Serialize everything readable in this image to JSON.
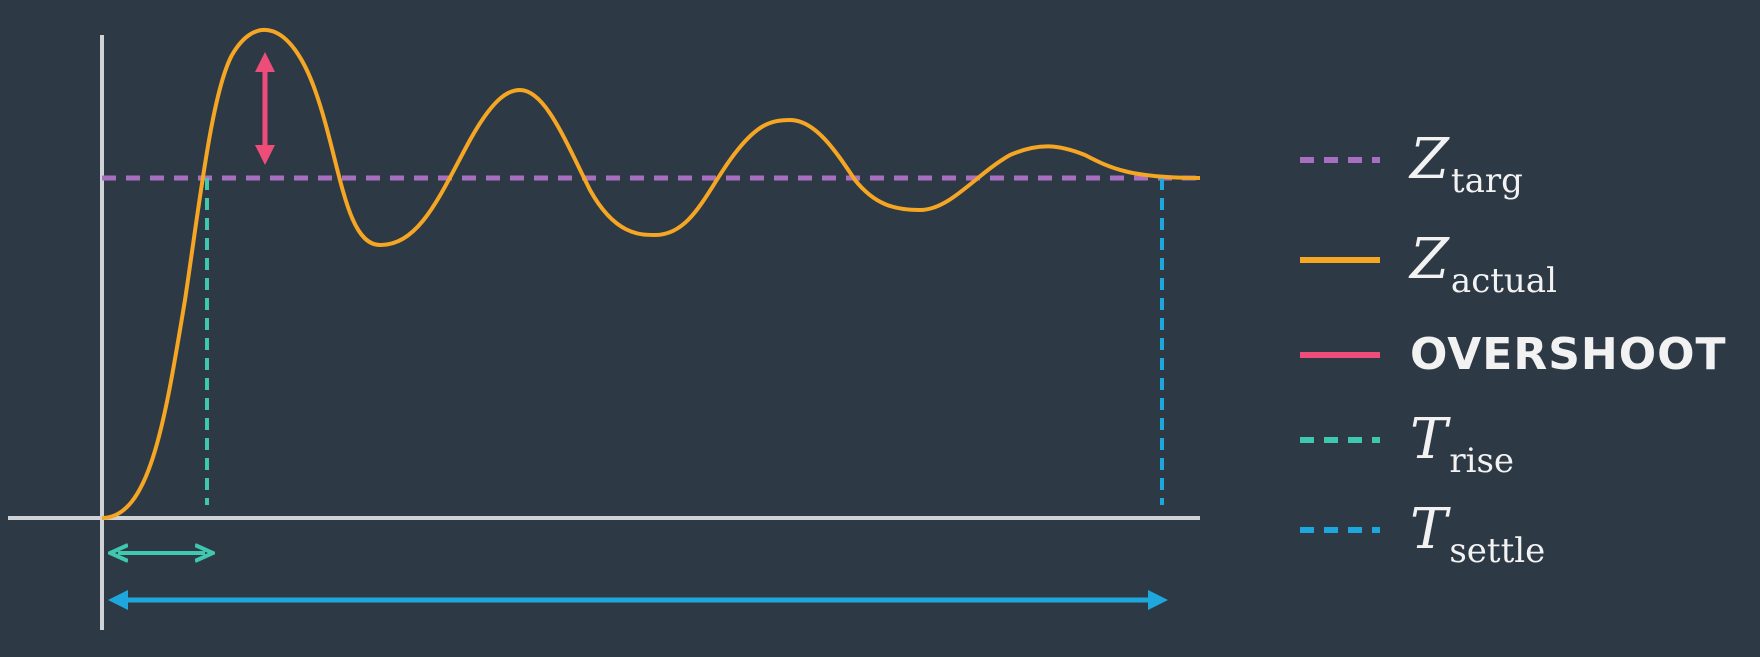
{
  "colors": {
    "background": "#2e3946",
    "axes": "#cfd3d8",
    "target": "#a86fc0",
    "actual": "#f5a623",
    "overshoot": "#ee4d7a",
    "rise": "#3fc7b0",
    "settle": "#1ea7dd"
  },
  "legend": [
    {
      "key": "target",
      "main": "Z",
      "sub": "targ",
      "style": "dashed",
      "color": "#a86fc0"
    },
    {
      "key": "actual",
      "main": "Z",
      "sub": "actual",
      "style": "solid",
      "color": "#f5a623"
    },
    {
      "key": "overshoot",
      "main": "OVERSHOOT",
      "sub": "",
      "style": "solid",
      "color": "#ee4d7a"
    },
    {
      "key": "rise",
      "main": "T",
      "sub": "rise",
      "style": "dashed",
      "color": "#3fc7b0"
    },
    {
      "key": "settle",
      "main": "T",
      "sub": "settle",
      "style": "dashed",
      "color": "#1ea7dd"
    }
  ]
}
